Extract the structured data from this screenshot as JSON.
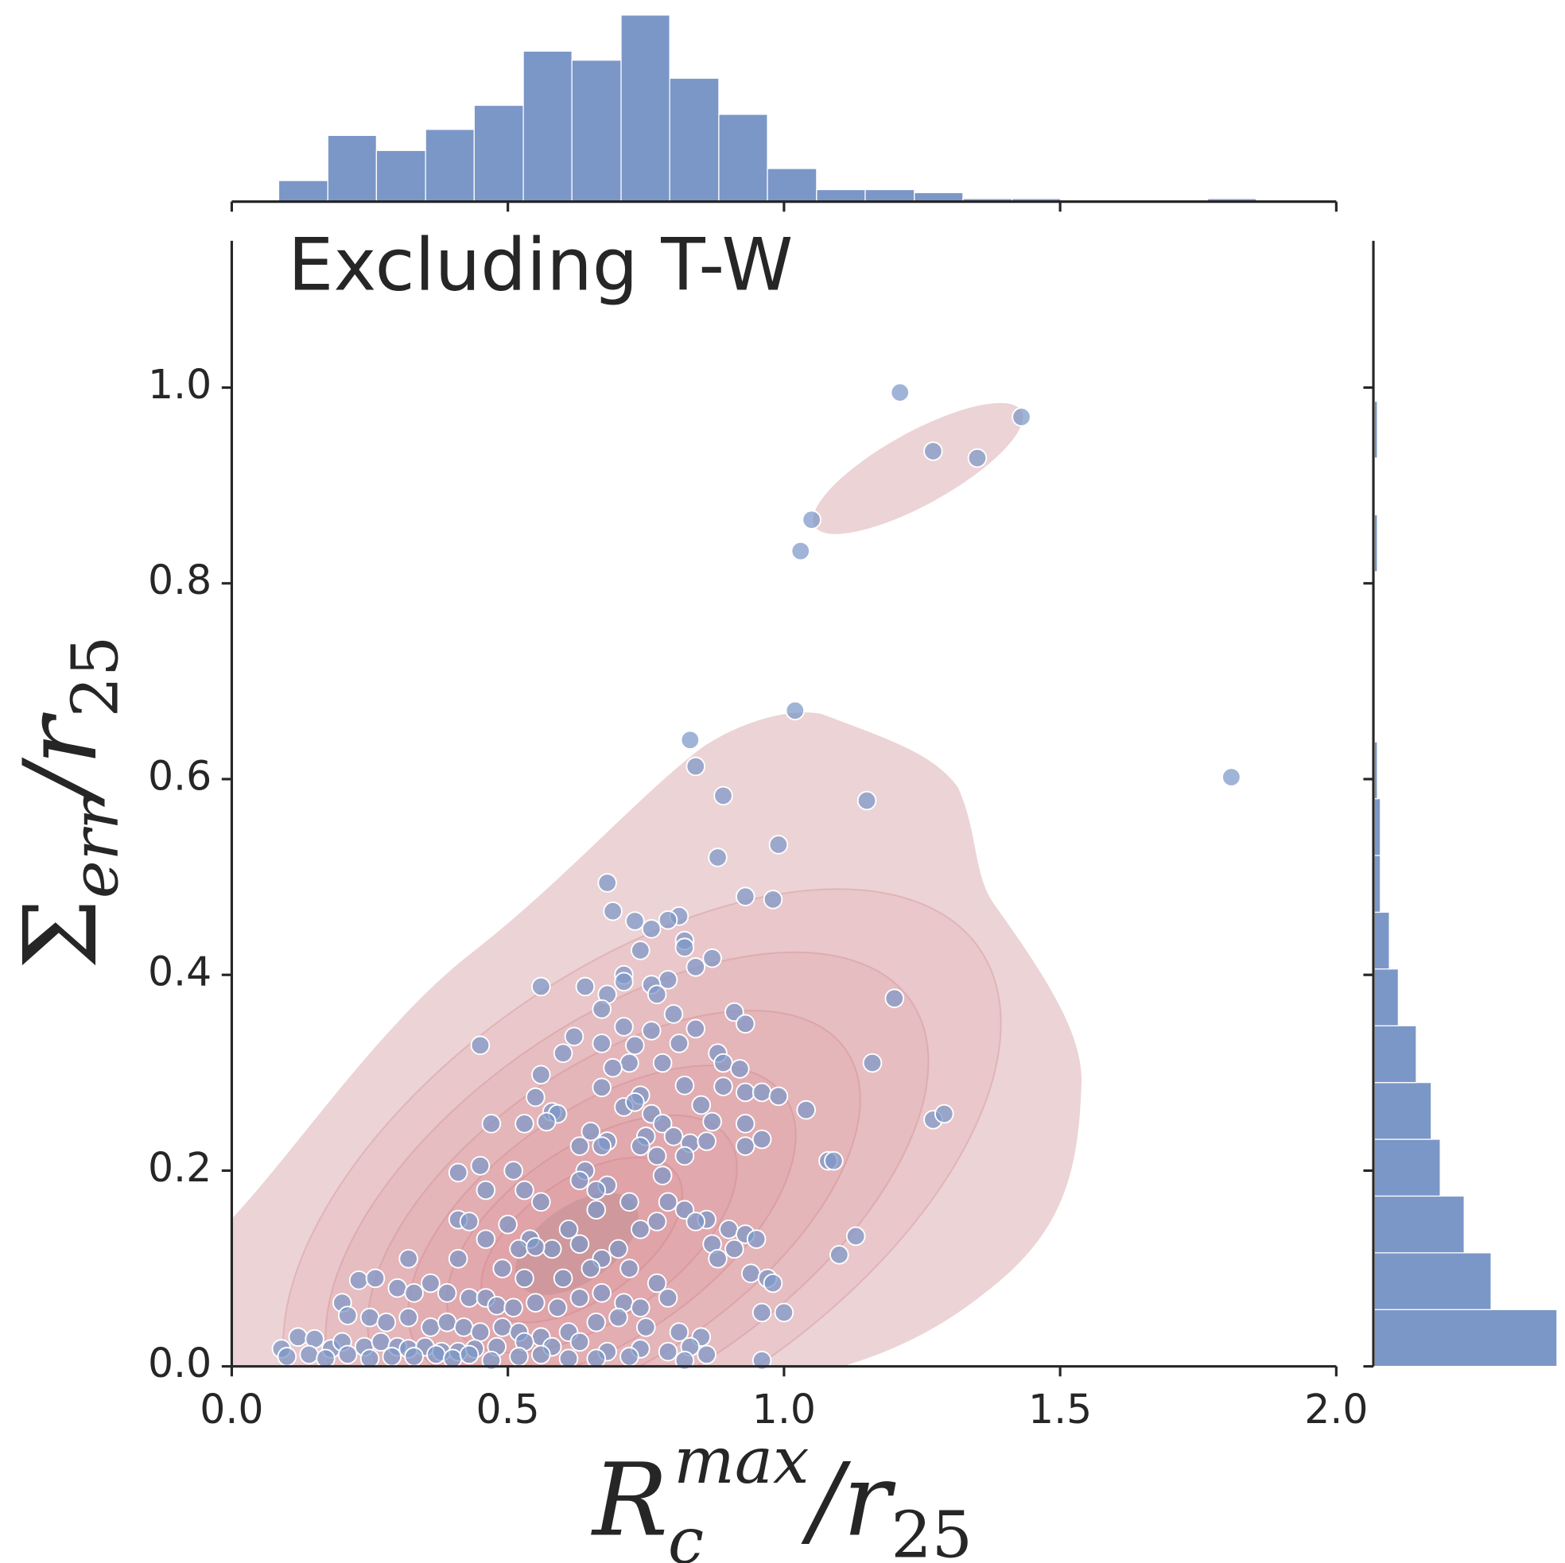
{
  "chart_data": [
    {
      "type": "scatter",
      "title": "Excluding T-W",
      "xlabel": [
        "R",
        "c",
        "max",
        "/r",
        "25"
      ],
      "ylabel": [
        "Σ",
        "err",
        "/r",
        "25"
      ],
      "xlim": [
        0,
        2
      ],
      "ylim": [
        0,
        1.15
      ],
      "xticks": [
        {
          "value": 0,
          "label": "0.0"
        },
        0.5,
        {
          "value": 1,
          "label": "1.0"
        },
        1.5,
        {
          "value": 2,
          "label": "2.0"
        }
      ],
      "yticks": [
        {
          "value": 0,
          "label": "0.0"
        },
        0.2,
        0.4,
        0.6,
        0.8,
        {
          "value": 1,
          "label": "1.0"
        }
      ],
      "color": "#7b97c7",
      "x": [
        1.21,
        1.43,
        1.27,
        1.35,
        1.05,
        1.03,
        1.02,
        0.83,
        0.84,
        1.81,
        0.89,
        1.15,
        0.99,
        0.88,
        0.68,
        0.69,
        0.93,
        0.98,
        0.73,
        0.81,
        0.79,
        0.76,
        0.82,
        0.82,
        0.87,
        0.84,
        0.74,
        0.71,
        0.71,
        0.79,
        0.76,
        0.56,
        0.64,
        0.68,
        0.77,
        1.2,
        0.67,
        0.8,
        0.91,
        0.93,
        0.62,
        0.71,
        0.76,
        0.84,
        0.45,
        0.67,
        0.73,
        0.81,
        0.6,
        0.88,
        0.72,
        0.78,
        0.89,
        1.16,
        0.92,
        0.56,
        0.69,
        0.55,
        0.67,
        0.74,
        0.82,
        0.89,
        0.93,
        0.96,
        0.99,
        0.58,
        0.59,
        0.71,
        0.73,
        0.76,
        0.85,
        0.78,
        0.47,
        0.53,
        0.57,
        0.65,
        0.68,
        0.75,
        0.8,
        0.87,
        0.93,
        1.04,
        1.27,
        1.29,
        0.63,
        0.67,
        0.74,
        0.83,
        0.86,
        0.93,
        0.96,
        0.77,
        0.82,
        0.45,
        0.51,
        0.64,
        0.68,
        0.41,
        1.08,
        1.09,
        0.78,
        0.46,
        0.53,
        0.56,
        0.63,
        0.66,
        0.72,
        0.79,
        0.82,
        0.86,
        0.41,
        0.43,
        0.5,
        0.54,
        0.58,
        0.61,
        0.66,
        0.74,
        0.77,
        0.84,
        0.9,
        0.93,
        0.95,
        1.13,
        0.46,
        0.52,
        0.55,
        0.63,
        0.67,
        0.7,
        0.87,
        0.88,
        0.91,
        1.1,
        0.32,
        0.41,
        0.49,
        0.53,
        0.6,
        0.65,
        0.72,
        0.77,
        0.94,
        0.97,
        0.98,
        0.23,
        0.26,
        0.3,
        0.33,
        0.36,
        0.39,
        0.43,
        0.46,
        0.48,
        0.51,
        0.55,
        0.59,
        0.63,
        0.67,
        0.71,
        0.74,
        0.79,
        0.2,
        0.21,
        0.25,
        0.28,
        0.32,
        0.36,
        0.39,
        0.42,
        0.45,
        0.49,
        0.52,
        0.56,
        0.61,
        0.66,
        0.7,
        0.75,
        0.81,
        0.85,
        0.96,
        1.0,
        0.09,
        0.12,
        0.15,
        0.18,
        0.2,
        0.24,
        0.27,
        0.3,
        0.32,
        0.35,
        0.38,
        0.41,
        0.44,
        0.48,
        0.53,
        0.58,
        0.63,
        0.68,
        0.74,
        0.79,
        0.83,
        0.1,
        0.14,
        0.17,
        0.21,
        0.25,
        0.29,
        0.33,
        0.37,
        0.4,
        0.43,
        0.47,
        0.52,
        0.56,
        0.61,
        0.66,
        0.72,
        0.82,
        0.86,
        0.96
      ],
      "values": [
        0.995,
        0.97,
        0.935,
        0.928,
        0.865,
        0.833,
        0.67,
        0.64,
        0.613,
        0.602,
        0.583,
        0.578,
        0.533,
        0.52,
        0.494,
        0.465,
        0.48,
        0.477,
        0.455,
        0.46,
        0.456,
        0.447,
        0.435,
        0.428,
        0.417,
        0.408,
        0.425,
        0.4,
        0.393,
        0.395,
        0.39,
        0.388,
        0.388,
        0.38,
        0.38,
        0.376,
        0.365,
        0.36,
        0.362,
        0.35,
        0.337,
        0.347,
        0.343,
        0.345,
        0.328,
        0.33,
        0.328,
        0.33,
        0.32,
        0.32,
        0.31,
        0.31,
        0.31,
        0.31,
        0.304,
        0.298,
        0.305,
        0.275,
        0.285,
        0.277,
        0.287,
        0.286,
        0.28,
        0.28,
        0.276,
        0.26,
        0.258,
        0.265,
        0.27,
        0.258,
        0.267,
        0.248,
        0.248,
        0.248,
        0.25,
        0.24,
        0.23,
        0.235,
        0.235,
        0.25,
        0.248,
        0.262,
        0.252,
        0.258,
        0.225,
        0.225,
        0.225,
        0.228,
        0.23,
        0.225,
        0.232,
        0.215,
        0.215,
        0.205,
        0.2,
        0.2,
        0.185,
        0.198,
        0.21,
        0.21,
        0.195,
        0.18,
        0.18,
        0.168,
        0.19,
        0.18,
        0.168,
        0.168,
        0.16,
        0.15,
        0.15,
        0.148,
        0.145,
        0.13,
        0.12,
        0.14,
        0.16,
        0.14,
        0.148,
        0.148,
        0.14,
        0.135,
        0.13,
        0.133,
        0.13,
        0.12,
        0.122,
        0.125,
        0.11,
        0.12,
        0.125,
        0.11,
        0.12,
        0.114,
        0.11,
        0.11,
        0.1,
        0.09,
        0.09,
        0.1,
        0.1,
        0.085,
        0.095,
        0.09,
        0.085,
        0.088,
        0.09,
        0.08,
        0.075,
        0.085,
        0.075,
        0.07,
        0.07,
        0.062,
        0.06,
        0.065,
        0.06,
        0.07,
        0.075,
        0.065,
        0.06,
        0.07,
        0.065,
        0.052,
        0.05,
        0.045,
        0.05,
        0.04,
        0.045,
        0.04,
        0.035,
        0.04,
        0.035,
        0.03,
        0.035,
        0.045,
        0.05,
        0.04,
        0.035,
        0.03,
        0.055,
        0.055,
        0.018,
        0.03,
        0.028,
        0.018,
        0.025,
        0.02,
        0.025,
        0.02,
        0.018,
        0.02,
        0.015,
        0.015,
        0.018,
        0.02,
        0.025,
        0.02,
        0.025,
        0.015,
        0.018,
        0.015,
        0.02,
        0.01,
        0.012,
        0.008,
        0.012,
        0.008,
        0.01,
        0.01,
        0.012,
        0.008,
        0.012,
        0.006,
        0.01,
        0.012,
        0.008,
        0.008,
        0.01,
        0.006,
        0.012,
        0.006
      ]
    },
    {
      "type": "histogram",
      "orientation": "vertical",
      "color": "#7b97c7",
      "bins": [
        0.085,
        0.174,
        0.262,
        0.351,
        0.439,
        0.528,
        0.616,
        0.705,
        0.793,
        0.882,
        0.97,
        1.059,
        1.147,
        1.236,
        1.324,
        1.413,
        1.501,
        1.59,
        1.678,
        1.767,
        1.855
      ],
      "values": [
        7,
        22,
        17,
        24,
        32,
        50,
        47,
        62,
        41,
        29,
        11,
        4,
        4,
        3,
        1,
        1,
        0,
        0,
        0,
        1
      ]
    },
    {
      "type": "histogram",
      "orientation": "horizontal",
      "color": "#7b97c7",
      "bins": [
        0,
        0.058,
        0.116,
        0.174,
        0.232,
        0.29,
        0.348,
        0.406,
        0.464,
        0.522,
        0.58,
        0.638,
        0.696,
        0.754,
        0.812,
        0.87,
        0.928,
        0.986
      ],
      "values": [
        61,
        39,
        30,
        22,
        19,
        14,
        8,
        5,
        2,
        2,
        1,
        0,
        0,
        0,
        1,
        0,
        1
      ]
    }
  ]
}
